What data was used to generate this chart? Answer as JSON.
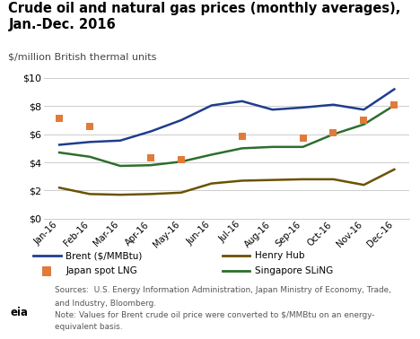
{
  "title": "Crude oil and natural gas prices (monthly averages),\nJan.-Dec. 2016",
  "subtitle": "$/million British thermal units",
  "months": [
    "Jan-16",
    "Feb-16",
    "Mar-16",
    "Apr-16",
    "May-16",
    "Jun-16",
    "Jul-16",
    "Aug-16",
    "Sep-16",
    "Oct-16",
    "Nov-16",
    "Dec-16"
  ],
  "brent": [
    5.25,
    5.45,
    5.55,
    6.2,
    7.0,
    8.05,
    8.35,
    7.75,
    7.9,
    8.1,
    7.75,
    9.2
  ],
  "henry_hub": [
    2.2,
    1.75,
    1.7,
    1.75,
    1.85,
    2.5,
    2.7,
    2.75,
    2.8,
    2.8,
    2.4,
    3.5
  ],
  "japan_lng_x": [
    0,
    1,
    3,
    4,
    6,
    8,
    9,
    10,
    11
  ],
  "japan_lng_y": [
    7.1,
    6.55,
    4.3,
    4.2,
    5.85,
    5.7,
    6.1,
    7.0,
    8.1
  ],
  "singapore": [
    4.7,
    4.4,
    3.75,
    3.8,
    4.05,
    4.55,
    5.0,
    5.1,
    5.1,
    6.0,
    6.7,
    8.05
  ],
  "brent_color": "#1f3d8c",
  "henry_hub_color": "#6b5200",
  "japan_lng_color": "#e07b39",
  "singapore_color": "#2d6e2d",
  "ylim": [
    0,
    10
  ],
  "yticks": [
    0,
    2,
    4,
    6,
    8,
    10
  ],
  "bg_color": "#ffffff",
  "grid_color": "#cccccc",
  "sources_line1": "Sources:  U.S. Energy Information Administration, Japan Ministry of Economy, Trade,",
  "sources_line2": "and Industry, Bloomberg.",
  "sources_line3": "Note: Values for Brent crude oil price were converted to $/MMBtu on an energy-",
  "sources_line4": "equivalent basis."
}
